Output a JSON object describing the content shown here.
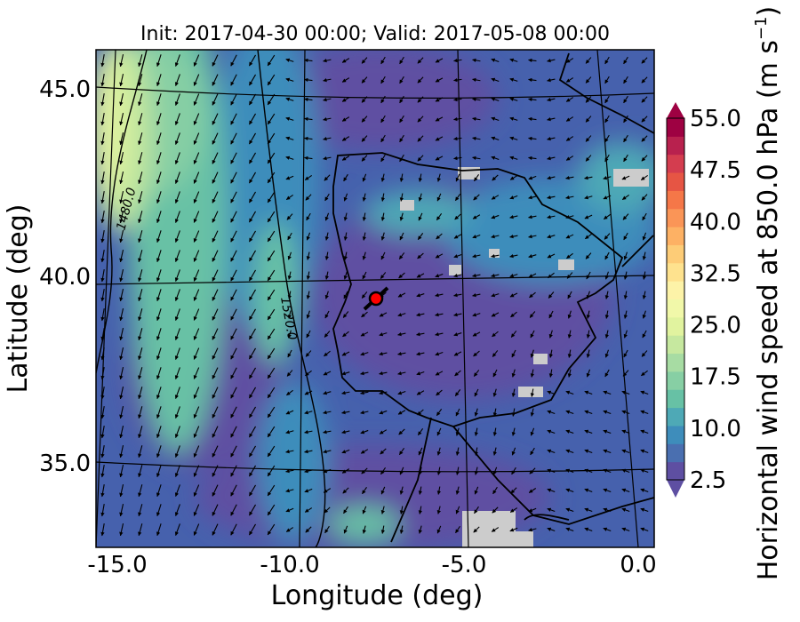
{
  "title": "Init: 2017-04-30 00:00; Valid: 2017-05-08 00:00",
  "map": {
    "extent_lon": [
      -15.7,
      0.2
    ],
    "extent_lat": [
      32.8,
      46.0
    ],
    "xlabel": "Longitude (deg)",
    "ylabel": "Latitude (deg)",
    "xticks": [
      {
        "value": -15.0,
        "label": "-15.0"
      },
      {
        "value": -10.0,
        "label": "-10.0"
      },
      {
        "value": -5.0,
        "label": "-5.0"
      },
      {
        "value": 0.0,
        "label": "0.0"
      }
    ],
    "yticks": [
      {
        "value": 35.0,
        "label": "35.0"
      },
      {
        "value": 40.0,
        "label": "40.0"
      },
      {
        "value": 45.0,
        "label": "45.0"
      }
    ],
    "contour_labels": [
      {
        "text": "1480.0",
        "lon": -15.4,
        "lat": 41.9
      },
      {
        "text": "1520.0",
        "lon": -10.8,
        "lat": 38.9
      }
    ],
    "marker": {
      "lon": -7.9,
      "lat": 39.3,
      "color": "#ff0000"
    },
    "field": "Horizontal wind speed at 850.0 hPa"
  },
  "colorbar": {
    "label": "Horizontal wind speed at 850.0 hPa (m s$^{-1}$)",
    "label_main": "Horizontal wind speed at 850.0 hPa (m s",
    "label_exp": "−1",
    "label_close": ")",
    "min": 2.5,
    "max": 55.0,
    "step": 2.5,
    "tick_labels": [
      "2.5",
      "10.0",
      "17.5",
      "25.0",
      "32.5",
      "40.0",
      "47.5",
      "55.0"
    ],
    "colors": [
      "#5e4fa2",
      "#4a6fb0",
      "#3e8dbb",
      "#4ea9b6",
      "#67c1a5",
      "#87cfa4",
      "#a7dca3",
      "#c6e89f",
      "#e1f39f",
      "#f1f8a9",
      "#fdf3a8",
      "#fee28e",
      "#fdcc77",
      "#fdb164",
      "#fa9557",
      "#f57748",
      "#e65544",
      "#d43d4f",
      "#b8214e",
      "#9e0142"
    ],
    "under_color": "#5e4fa2",
    "over_color": "#9e0142"
  },
  "colors": {
    "land_line": "#000000",
    "grid_line": "#000000",
    "missing": "#cccccc"
  }
}
